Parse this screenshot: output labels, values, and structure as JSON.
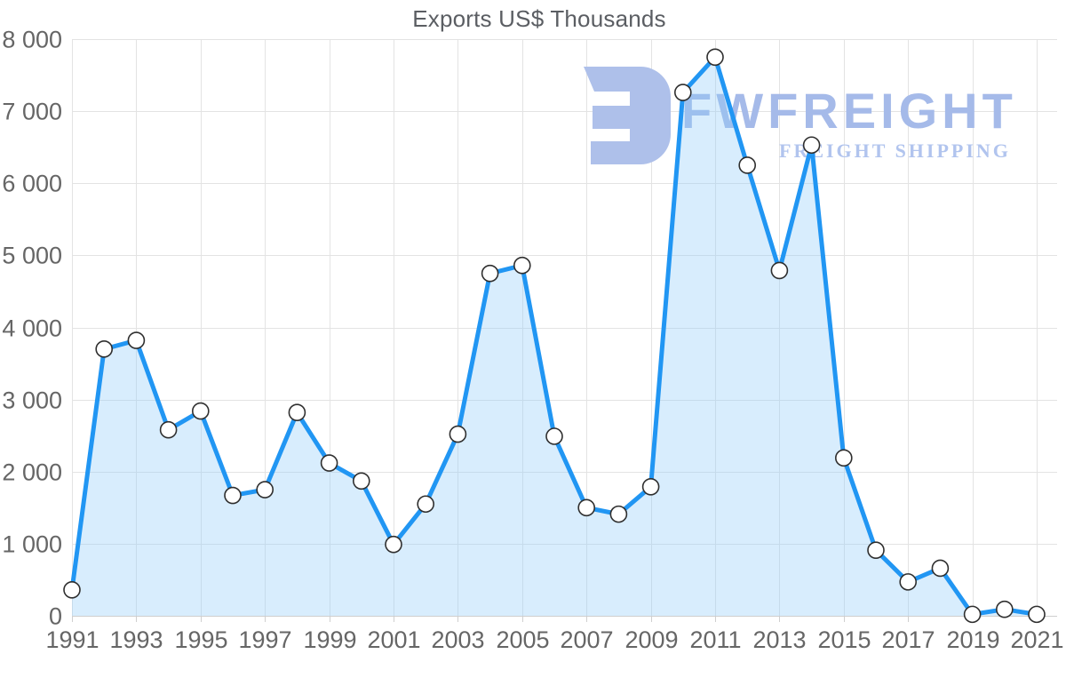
{
  "page": {
    "title": "Exports US$ Thousands"
  },
  "watermark": {
    "brand": "FWFREIGHT",
    "tagline": "FREIGHT SHIPPING",
    "logo_color": "#aec0ea",
    "brand_color": "#a5bae9",
    "tagline_color": "#b1c4ee"
  },
  "chart_data": {
    "type": "area",
    "title": "Exports US$ Thousands",
    "xlabel": "",
    "ylabel": "",
    "x": [
      1991,
      1992,
      1993,
      1994,
      1995,
      1996,
      1997,
      1998,
      1999,
      2000,
      2001,
      2002,
      2003,
      2004,
      2005,
      2006,
      2007,
      2008,
      2009,
      2010,
      2011,
      2012,
      2013,
      2014,
      2015,
      2016,
      2017,
      2018,
      2019,
      2020,
      2021
    ],
    "values": [
      360,
      3700,
      3820,
      2580,
      2840,
      1670,
      1750,
      2820,
      2120,
      1870,
      990,
      1550,
      2520,
      4750,
      4860,
      2490,
      1500,
      1410,
      1790,
      7260,
      7750,
      6250,
      4790,
      6530,
      2190,
      910,
      470,
      660,
      20,
      90,
      20
    ],
    "ylim": [
      0,
      8000
    ],
    "y_tick_labels": [
      "0",
      "1 000",
      "2 000",
      "3 000",
      "4 000",
      "5 000",
      "6 000",
      "7 000",
      "8 000"
    ],
    "x_tick_labels": [
      "1991",
      "1993",
      "1995",
      "1997",
      "1999",
      "2001",
      "2003",
      "2005",
      "2007",
      "2009",
      "2011",
      "2013",
      "2015",
      "2017",
      "2019",
      "2021"
    ],
    "grid": true,
    "legend": "none",
    "colors": {
      "line": "#2196f3",
      "fill": "rgba(144,202,249,0.35)",
      "marker_fill": "#ffffff",
      "marker_stroke": "#2f2f2f",
      "grid": "#e3e3e3",
      "axis_line": "#cfcfcf",
      "axis_text": "#666666",
      "title_text": "#5b5e63"
    }
  }
}
